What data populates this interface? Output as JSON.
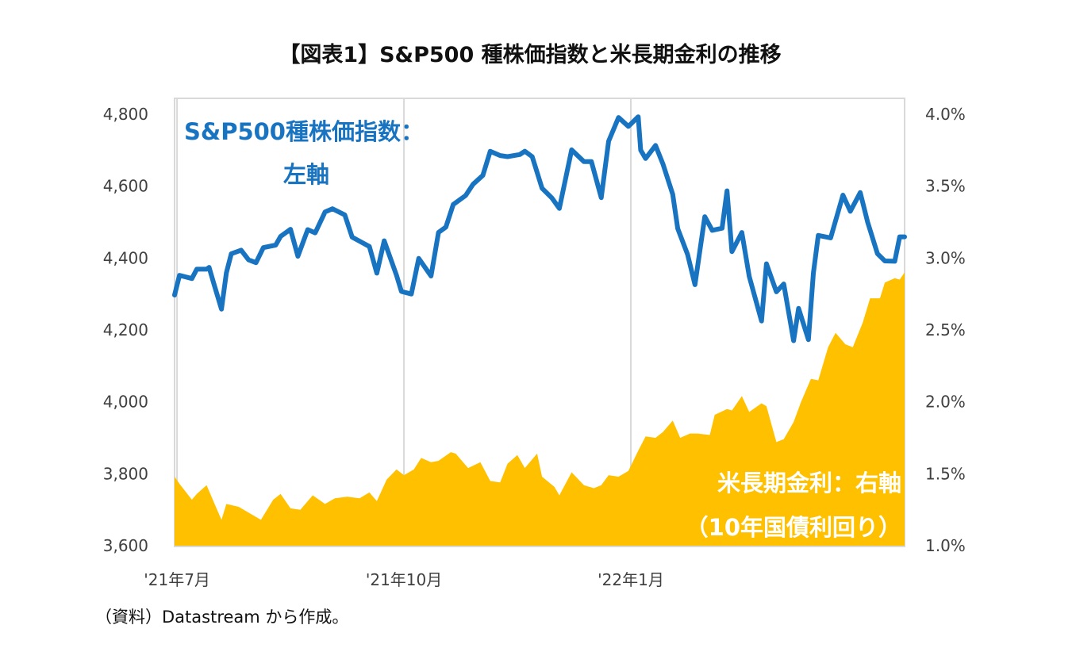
{
  "title": "【図表1】S&P500 種株価指数と米長期金利の推移",
  "source": "（資料）Datastream から作成。",
  "colors": {
    "sp500": "#1874c1",
    "yield": "#ffc000",
    "grid": "#d9d9d9",
    "axis": "#d9d9d9"
  },
  "chart_data": {
    "type": "line",
    "title": "【図表1】S&P500 種株価指数と米長期金利の推移",
    "x_range": [
      "2021-06-30",
      "2022-04-22"
    ],
    "x_ticks": [
      {
        "date": "2021-07-01",
        "label": "'21年7月"
      },
      {
        "date": "2021-10-01",
        "label": "'21年10月"
      },
      {
        "date": "2022-01-01",
        "label": "'22年1月"
      }
    ],
    "y_left": {
      "min": 3600,
      "max": 4800,
      "ticks": [
        "4,800",
        "4,600",
        "4,400",
        "4,200",
        "4,000",
        "3,800",
        "3,600"
      ],
      "values": [
        4800,
        4600,
        4400,
        4200,
        4000,
        3800,
        3600
      ]
    },
    "y_right": {
      "min": 1.0,
      "max": 4.0,
      "ticks": [
        "4.0%",
        "3.5%",
        "3.0%",
        "2.5%",
        "2.0%",
        "1.5%",
        "1.0%"
      ],
      "values": [
        4.0,
        3.5,
        3.0,
        2.5,
        2.0,
        1.5,
        1.0
      ]
    },
    "grid": "vertical",
    "annotations": {
      "sp500_line1": "S&P500種株価指数：",
      "sp500_line2": "左軸",
      "yield_line1": "米長期金利：右軸",
      "yield_line2": "（10年国債利回り）"
    },
    "series": [
      {
        "name": "S&P500種株価指数",
        "axis": "left",
        "type": "line",
        "data": [
          [
            "2021-06-30",
            4297
          ],
          [
            "2021-07-02",
            4352
          ],
          [
            "2021-07-07",
            4343
          ],
          [
            "2021-07-09",
            4369
          ],
          [
            "2021-07-13",
            4369
          ],
          [
            "2021-07-14",
            4374
          ],
          [
            "2021-07-16",
            4327
          ],
          [
            "2021-07-19",
            4258
          ],
          [
            "2021-07-21",
            4359
          ],
          [
            "2021-07-23",
            4412
          ],
          [
            "2021-07-27",
            4422
          ],
          [
            "2021-07-30",
            4395
          ],
          [
            "2021-08-02",
            4387
          ],
          [
            "2021-08-05",
            4429
          ],
          [
            "2021-08-10",
            4436
          ],
          [
            "2021-08-12",
            4460
          ],
          [
            "2021-08-16",
            4480
          ],
          [
            "2021-08-19",
            4405
          ],
          [
            "2021-08-23",
            4479
          ],
          [
            "2021-08-26",
            4470
          ],
          [
            "2021-08-30",
            4528
          ],
          [
            "2021-09-02",
            4537
          ],
          [
            "2021-09-07",
            4520
          ],
          [
            "2021-09-10",
            4458
          ],
          [
            "2021-09-14",
            4443
          ],
          [
            "2021-09-17",
            4432
          ],
          [
            "2021-09-20",
            4358
          ],
          [
            "2021-09-23",
            4448
          ],
          [
            "2021-09-28",
            4352
          ],
          [
            "2021-09-30",
            4307
          ],
          [
            "2021-10-04",
            4300
          ],
          [
            "2021-10-07",
            4399
          ],
          [
            "2021-10-12",
            4350
          ],
          [
            "2021-10-15",
            4471
          ],
          [
            "2021-10-18",
            4486
          ],
          [
            "2021-10-21",
            4549
          ],
          [
            "2021-10-26",
            4574
          ],
          [
            "2021-10-29",
            4605
          ],
          [
            "2021-11-02",
            4630
          ],
          [
            "2021-11-05",
            4697
          ],
          [
            "2021-11-09",
            4685
          ],
          [
            "2021-11-12",
            4682
          ],
          [
            "2021-11-17",
            4688
          ],
          [
            "2021-11-19",
            4697
          ],
          [
            "2021-11-22",
            4682
          ],
          [
            "2021-11-26",
            4594
          ],
          [
            "2021-11-30",
            4567
          ],
          [
            "2021-12-03",
            4538
          ],
          [
            "2021-12-08",
            4701
          ],
          [
            "2021-12-13",
            4668
          ],
          [
            "2021-12-16",
            4668
          ],
          [
            "2021-12-20",
            4568
          ],
          [
            "2021-12-23",
            4725
          ],
          [
            "2021-12-27",
            4791
          ],
          [
            "2021-12-31",
            4766
          ],
          [
            "2022-01-04",
            4793
          ],
          [
            "2022-01-05",
            4700
          ],
          [
            "2022-01-07",
            4677
          ],
          [
            "2022-01-11",
            4713
          ],
          [
            "2022-01-14",
            4662
          ],
          [
            "2022-01-18",
            4577
          ],
          [
            "2022-01-20",
            4482
          ],
          [
            "2022-01-24",
            4410
          ],
          [
            "2022-01-27",
            4326
          ],
          [
            "2022-01-31",
            4515
          ],
          [
            "2022-02-03",
            4477
          ],
          [
            "2022-02-07",
            4483
          ],
          [
            "2022-02-09",
            4587
          ],
          [
            "2022-02-11",
            4418
          ],
          [
            "2022-02-15",
            4471
          ],
          [
            "2022-02-18",
            4349
          ],
          [
            "2022-02-23",
            4225
          ],
          [
            "2022-02-25",
            4384
          ],
          [
            "2022-03-01",
            4306
          ],
          [
            "2022-03-04",
            4328
          ],
          [
            "2022-03-08",
            4170
          ],
          [
            "2022-03-10",
            4260
          ],
          [
            "2022-03-14",
            4173
          ],
          [
            "2022-03-16",
            4357
          ],
          [
            "2022-03-18",
            4463
          ],
          [
            "2022-03-23",
            4456
          ],
          [
            "2022-03-28",
            4575
          ],
          [
            "2022-03-31",
            4530
          ],
          [
            "2022-04-04",
            4582
          ],
          [
            "2022-04-07",
            4500
          ],
          [
            "2022-04-11",
            4412
          ],
          [
            "2022-04-14",
            4392
          ],
          [
            "2022-04-18",
            4391
          ],
          [
            "2022-04-20",
            4459
          ],
          [
            "2022-04-22",
            4459
          ]
        ]
      },
      {
        "name": "米長期金利（10年国債利回り）",
        "axis": "right",
        "type": "area",
        "data": [
          [
            "2021-06-30",
            1.48
          ],
          [
            "2021-07-02",
            1.43
          ],
          [
            "2021-07-07",
            1.32
          ],
          [
            "2021-07-09",
            1.36
          ],
          [
            "2021-07-13",
            1.42
          ],
          [
            "2021-07-16",
            1.3
          ],
          [
            "2021-07-19",
            1.18
          ],
          [
            "2021-07-21",
            1.29
          ],
          [
            "2021-07-26",
            1.27
          ],
          [
            "2021-07-30",
            1.23
          ],
          [
            "2021-08-04",
            1.18
          ],
          [
            "2021-08-09",
            1.32
          ],
          [
            "2021-08-12",
            1.36
          ],
          [
            "2021-08-16",
            1.26
          ],
          [
            "2021-08-20",
            1.25
          ],
          [
            "2021-08-25",
            1.35
          ],
          [
            "2021-08-30",
            1.29
          ],
          [
            "2021-09-03",
            1.33
          ],
          [
            "2021-09-08",
            1.34
          ],
          [
            "2021-09-13",
            1.33
          ],
          [
            "2021-09-17",
            1.37
          ],
          [
            "2021-09-20",
            1.31
          ],
          [
            "2021-09-24",
            1.46
          ],
          [
            "2021-09-28",
            1.53
          ],
          [
            "2021-10-01",
            1.49
          ],
          [
            "2021-10-05",
            1.53
          ],
          [
            "2021-10-08",
            1.61
          ],
          [
            "2021-10-12",
            1.58
          ],
          [
            "2021-10-15",
            1.59
          ],
          [
            "2021-10-20",
            1.65
          ],
          [
            "2021-10-22",
            1.64
          ],
          [
            "2021-10-27",
            1.54
          ],
          [
            "2021-11-01",
            1.58
          ],
          [
            "2021-11-05",
            1.45
          ],
          [
            "2021-11-09",
            1.44
          ],
          [
            "2021-11-12",
            1.57
          ],
          [
            "2021-11-16",
            1.63
          ],
          [
            "2021-11-19",
            1.54
          ],
          [
            "2021-11-24",
            1.64
          ],
          [
            "2021-11-26",
            1.48
          ],
          [
            "2021-12-01",
            1.41
          ],
          [
            "2021-12-03",
            1.35
          ],
          [
            "2021-12-08",
            1.51
          ],
          [
            "2021-12-13",
            1.42
          ],
          [
            "2021-12-17",
            1.4
          ],
          [
            "2021-12-20",
            1.42
          ],
          [
            "2021-12-23",
            1.49
          ],
          [
            "2021-12-27",
            1.48
          ],
          [
            "2021-12-31",
            1.52
          ],
          [
            "2022-01-04",
            1.66
          ],
          [
            "2022-01-07",
            1.76
          ],
          [
            "2022-01-11",
            1.75
          ],
          [
            "2022-01-14",
            1.79
          ],
          [
            "2022-01-18",
            1.87
          ],
          [
            "2022-01-21",
            1.75
          ],
          [
            "2022-01-25",
            1.78
          ],
          [
            "2022-01-28",
            1.78
          ],
          [
            "2022-02-02",
            1.77
          ],
          [
            "2022-02-04",
            1.91
          ],
          [
            "2022-02-09",
            1.95
          ],
          [
            "2022-02-11",
            1.94
          ],
          [
            "2022-02-15",
            2.04
          ],
          [
            "2022-02-18",
            1.93
          ],
          [
            "2022-02-23",
            1.99
          ],
          [
            "2022-02-25",
            1.97
          ],
          [
            "2022-03-01",
            1.72
          ],
          [
            "2022-03-04",
            1.74
          ],
          [
            "2022-03-08",
            1.86
          ],
          [
            "2022-03-11",
            2.0
          ],
          [
            "2022-03-15",
            2.16
          ],
          [
            "2022-03-18",
            2.15
          ],
          [
            "2022-03-22",
            2.38
          ],
          [
            "2022-03-25",
            2.48
          ],
          [
            "2022-03-29",
            2.4
          ],
          [
            "2022-04-01",
            2.38
          ],
          [
            "2022-04-05",
            2.55
          ],
          [
            "2022-04-08",
            2.72
          ],
          [
            "2022-04-12",
            2.72
          ],
          [
            "2022-04-14",
            2.83
          ],
          [
            "2022-04-18",
            2.86
          ],
          [
            "2022-04-20",
            2.85
          ],
          [
            "2022-04-22",
            2.9
          ]
        ]
      }
    ]
  }
}
